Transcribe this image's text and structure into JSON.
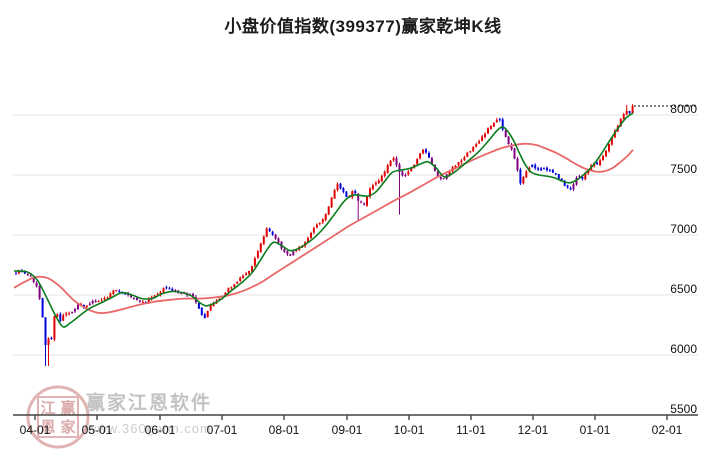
{
  "header": {
    "title": "小盘价值指数(399377)赢家乾坤K线"
  },
  "watermark": {
    "brand_text": "赢家江恩软件",
    "url_text": "www.360gann.com",
    "seal_chars": [
      "江",
      "赢",
      "恩",
      "家"
    ],
    "seal_color": "#d89a9a"
  },
  "chart_data": {
    "type": "candlestick",
    "title": "小盘价值指数(399377)赢家乾坤K线",
    "index_name": "小盘价值指数",
    "index_code": "399377",
    "legend_position": "none",
    "grid": true,
    "y_axis": {
      "side": "right",
      "ticks": [
        8000,
        7500,
        7000,
        6500,
        6000,
        5500
      ],
      "grid_values": [
        8000,
        7500,
        7000,
        6500,
        6000
      ],
      "ylim": [
        5500,
        8210
      ]
    },
    "x_axis": {
      "tick_labels": [
        "04-01",
        "05-01",
        "06-01",
        "07-01",
        "08-01",
        "09-01",
        "10-01",
        "11-01",
        "12-01",
        "01-01",
        "02-01"
      ],
      "tick_x": [
        35,
        97,
        160,
        222,
        284,
        347,
        409,
        471,
        533,
        595,
        667
      ]
    },
    "last_price": 8075,
    "last_price_line": {
      "style": "dotted",
      "color": "#000000"
    },
    "colors": {
      "up_candle": "#e10000",
      "down_candle": "#0000dd",
      "neutral_candle": "#800080",
      "green_ma": "#0b7d1e",
      "red_ma": "#ea6767",
      "gridline": "#e5e5e5",
      "axis": "#444444",
      "label": "#111111"
    },
    "candle_gen": {
      "first_x": 16,
      "last_x": 634,
      "step": 2.95,
      "body_width": 2,
      "close_noise": 9,
      "open_jitter": 8,
      "wick_min": 2,
      "wick_max": 16,
      "seed": 7,
      "purple_ranges": [
        [
          27,
          41
        ],
        [
          70,
          79
        ],
        [
          89,
          98
        ],
        [
          128,
          142
        ],
        [
          173,
          196
        ],
        [
          275,
          296
        ],
        [
          356,
          367
        ],
        [
          394,
          406
        ],
        [
          429,
          447
        ],
        [
          503,
          518
        ],
        [
          573,
          582
        ]
      ],
      "blue_bias_ranges": [
        [
          518,
          572
        ]
      ],
      "wick_overrides": [
        {
          "x": 47,
          "low": 5908
        },
        {
          "x": 359,
          "low": 7125
        },
        {
          "x": 399,
          "low": 7170
        },
        {
          "x": 627,
          "high": 8085
        }
      ]
    },
    "series": {
      "close_anchors": [
        [
          14,
          6680
        ],
        [
          20,
          6705
        ],
        [
          26,
          6680
        ],
        [
          32,
          6640
        ],
        [
          38,
          6545
        ],
        [
          42,
          6350
        ],
        [
          45,
          6120
        ],
        [
          47,
          5985
        ],
        [
          49,
          6190
        ],
        [
          52,
          6110
        ],
        [
          55,
          6385
        ],
        [
          60,
          6290
        ],
        [
          65,
          6345
        ],
        [
          70,
          6340
        ],
        [
          75,
          6385
        ],
        [
          80,
          6430
        ],
        [
          85,
          6395
        ],
        [
          92,
          6440
        ],
        [
          100,
          6450
        ],
        [
          108,
          6480
        ],
        [
          114,
          6545
        ],
        [
          120,
          6535
        ],
        [
          127,
          6500
        ],
        [
          133,
          6475
        ],
        [
          140,
          6435
        ],
        [
          146,
          6440
        ],
        [
          152,
          6485
        ],
        [
          158,
          6510
        ],
        [
          165,
          6560
        ],
        [
          171,
          6540
        ],
        [
          178,
          6520
        ],
        [
          186,
          6505
        ],
        [
          192,
          6490
        ],
        [
          197,
          6430
        ],
        [
          202,
          6340
        ],
        [
          205,
          6310
        ],
        [
          210,
          6415
        ],
        [
          216,
          6450
        ],
        [
          222,
          6480
        ],
        [
          228,
          6545
        ],
        [
          235,
          6600
        ],
        [
          242,
          6650
        ],
        [
          250,
          6705
        ],
        [
          257,
          6840
        ],
        [
          263,
          6975
        ],
        [
          267,
          7055
        ],
        [
          271,
          7015
        ],
        [
          277,
          6950
        ],
        [
          283,
          6870
        ],
        [
          289,
          6820
        ],
        [
          295,
          6875
        ],
        [
          301,
          6900
        ],
        [
          307,
          6955
        ],
        [
          314,
          7055
        ],
        [
          321,
          7115
        ],
        [
          327,
          7195
        ],
        [
          333,
          7335
        ],
        [
          337,
          7420
        ],
        [
          342,
          7375
        ],
        [
          348,
          7300
        ],
        [
          353,
          7380
        ],
        [
          359,
          7280
        ],
        [
          364,
          7260
        ],
        [
          370,
          7380
        ],
        [
          377,
          7440
        ],
        [
          383,
          7500
        ],
        [
          389,
          7610
        ],
        [
          393,
          7650
        ],
        [
          398,
          7545
        ],
        [
          403,
          7480
        ],
        [
          408,
          7530
        ],
        [
          413,
          7560
        ],
        [
          418,
          7640
        ],
        [
          423,
          7715
        ],
        [
          428,
          7675
        ],
        [
          433,
          7560
        ],
        [
          438,
          7480
        ],
        [
          443,
          7455
        ],
        [
          448,
          7520
        ],
        [
          453,
          7560
        ],
        [
          458,
          7600
        ],
        [
          464,
          7650
        ],
        [
          470,
          7700
        ],
        [
          476,
          7750
        ],
        [
          482,
          7820
        ],
        [
          488,
          7880
        ],
        [
          494,
          7940
        ],
        [
          499,
          7970
        ],
        [
          504,
          7850
        ],
        [
          509,
          7760
        ],
        [
          513,
          7690
        ],
        [
          517,
          7560
        ],
        [
          520,
          7430
        ],
        [
          524,
          7505
        ],
        [
          528,
          7560
        ],
        [
          533,
          7580
        ],
        [
          538,
          7545
        ],
        [
          543,
          7565
        ],
        [
          548,
          7540
        ],
        [
          553,
          7520
        ],
        [
          558,
          7480
        ],
        [
          562,
          7450
        ],
        [
          566,
          7405
        ],
        [
          570,
          7375
        ],
        [
          574,
          7425
        ],
        [
          578,
          7500
        ],
        [
          582,
          7465
        ],
        [
          586,
          7520
        ],
        [
          590,
          7560
        ],
        [
          594,
          7600
        ],
        [
          598,
          7590
        ],
        [
          602,
          7645
        ],
        [
          606,
          7700
        ],
        [
          610,
          7780
        ],
        [
          614,
          7850
        ],
        [
          618,
          7905
        ],
        [
          622,
          7980
        ],
        [
          626,
          8045
        ],
        [
          630,
          8020
        ],
        [
          634,
          8075
        ]
      ],
      "green_ma_anchors": [
        [
          14,
          6700
        ],
        [
          28,
          6690
        ],
        [
          38,
          6615
        ],
        [
          48,
          6455
        ],
        [
          56,
          6320
        ],
        [
          63,
          6235
        ],
        [
          70,
          6265
        ],
        [
          80,
          6330
        ],
        [
          90,
          6390
        ],
        [
          100,
          6430
        ],
        [
          112,
          6480
        ],
        [
          122,
          6520
        ],
        [
          132,
          6500
        ],
        [
          142,
          6470
        ],
        [
          152,
          6470
        ],
        [
          162,
          6510
        ],
        [
          172,
          6530
        ],
        [
          182,
          6520
        ],
        [
          192,
          6490
        ],
        [
          200,
          6435
        ],
        [
          206,
          6410
        ],
        [
          214,
          6430
        ],
        [
          222,
          6470
        ],
        [
          232,
          6540
        ],
        [
          242,
          6605
        ],
        [
          252,
          6685
        ],
        [
          260,
          6785
        ],
        [
          268,
          6890
        ],
        [
          274,
          6940
        ],
        [
          282,
          6910
        ],
        [
          290,
          6870
        ],
        [
          298,
          6885
        ],
        [
          306,
          6925
        ],
        [
          316,
          6990
        ],
        [
          326,
          7080
        ],
        [
          336,
          7190
        ],
        [
          344,
          7280
        ],
        [
          352,
          7330
        ],
        [
          360,
          7330
        ],
        [
          368,
          7325
        ],
        [
          376,
          7360
        ],
        [
          384,
          7440
        ],
        [
          392,
          7520
        ],
        [
          400,
          7540
        ],
        [
          410,
          7555
        ],
        [
          420,
          7590
        ],
        [
          428,
          7610
        ],
        [
          436,
          7560
        ],
        [
          444,
          7485
        ],
        [
          452,
          7510
        ],
        [
          460,
          7560
        ],
        [
          470,
          7630
        ],
        [
          480,
          7705
        ],
        [
          490,
          7800
        ],
        [
          497,
          7870
        ],
        [
          503,
          7900
        ],
        [
          509,
          7850
        ],
        [
          514,
          7780
        ],
        [
          519,
          7690
        ],
        [
          525,
          7590
        ],
        [
          531,
          7525
        ],
        [
          539,
          7500
        ],
        [
          547,
          7490
        ],
        [
          555,
          7475
        ],
        [
          562,
          7450
        ],
        [
          570,
          7435
        ],
        [
          578,
          7465
        ],
        [
          586,
          7520
        ],
        [
          594,
          7590
        ],
        [
          602,
          7685
        ],
        [
          610,
          7790
        ],
        [
          618,
          7890
        ],
        [
          626,
          7975
        ],
        [
          633,
          8015
        ]
      ],
      "red_ma_anchors": [
        [
          14,
          6560
        ],
        [
          26,
          6615
        ],
        [
          36,
          6650
        ],
        [
          48,
          6640
        ],
        [
          60,
          6570
        ],
        [
          74,
          6455
        ],
        [
          88,
          6380
        ],
        [
          100,
          6350
        ],
        [
          112,
          6360
        ],
        [
          126,
          6390
        ],
        [
          140,
          6420
        ],
        [
          155,
          6445
        ],
        [
          170,
          6460
        ],
        [
          185,
          6470
        ],
        [
          200,
          6470
        ],
        [
          215,
          6480
        ],
        [
          230,
          6500
        ],
        [
          245,
          6540
        ],
        [
          260,
          6600
        ],
        [
          275,
          6680
        ],
        [
          290,
          6760
        ],
        [
          305,
          6840
        ],
        [
          320,
          6920
        ],
        [
          335,
          7000
        ],
        [
          350,
          7080
        ],
        [
          365,
          7150
        ],
        [
          380,
          7220
        ],
        [
          395,
          7290
        ],
        [
          410,
          7355
        ],
        [
          425,
          7425
        ],
        [
          440,
          7495
        ],
        [
          455,
          7555
        ],
        [
          470,
          7615
        ],
        [
          485,
          7670
        ],
        [
          500,
          7720
        ],
        [
          512,
          7745
        ],
        [
          524,
          7760
        ],
        [
          536,
          7750
        ],
        [
          546,
          7720
        ],
        [
          556,
          7685
        ],
        [
          566,
          7640
        ],
        [
          576,
          7590
        ],
        [
          586,
          7550
        ],
        [
          596,
          7528
        ],
        [
          604,
          7530
        ],
        [
          612,
          7555
        ],
        [
          620,
          7605
        ],
        [
          627,
          7655
        ],
        [
          633,
          7710
        ]
      ]
    }
  }
}
